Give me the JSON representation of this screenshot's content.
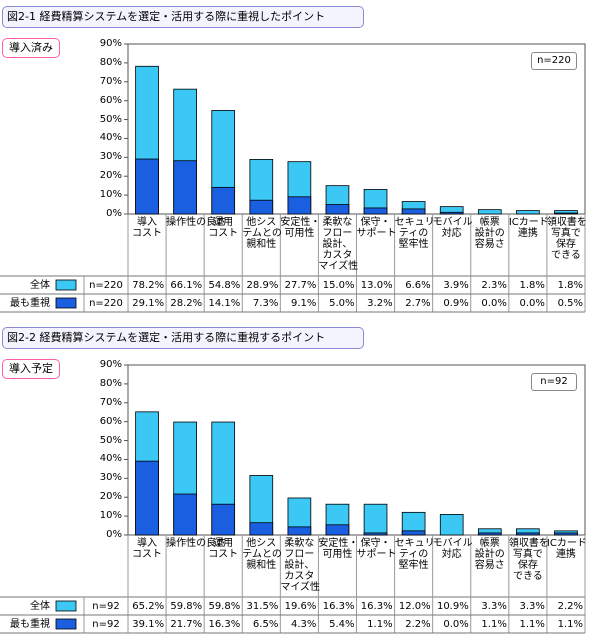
{
  "chart_data": [
    {
      "type": "bar",
      "title": "図2-1 経費精算システムを選定・活用する際に重視したポイント",
      "group_label": "導入済み",
      "sample_label": "n=220",
      "categories": [
        "導入\nコスト",
        "操作性の良さ",
        "運用\nコスト",
        "他シス\nテムとの\n親和性",
        "安定性・\n可用性",
        "柔軟な\nフロー\n設計、\nカスタ\nマイズ性",
        "保守・\nサポート",
        "セキュリ\nティの\n堅牢性",
        "モバイル\n対応",
        "帳票\n設計の\n容易さ",
        "ICカード\n連携",
        "領収書を\n写真で\n保存\nできる"
      ],
      "series": [
        {
          "name": "全体",
          "color": "#3cc8f5",
          "values": [
            78.2,
            66.1,
            54.8,
            28.9,
            27.7,
            15.0,
            13.0,
            6.6,
            3.9,
            2.3,
            1.8,
            1.8
          ],
          "value_labels": [
            "78.2%",
            "66.1%",
            "54.8%",
            "28.9%",
            "27.7%",
            "15.0%",
            "13.0%",
            "6.6%",
            "3.9%",
            "2.3%",
            "1.8%",
            "1.8%"
          ]
        },
        {
          "name": "最も重視",
          "color": "#1a5fe0",
          "values": [
            29.1,
            28.2,
            14.1,
            7.3,
            9.1,
            5.0,
            3.2,
            2.7,
            0.9,
            0.0,
            0.0,
            0.5
          ],
          "value_labels": [
            "29.1%",
            "28.2%",
            "14.1%",
            "7.3%",
            "9.1%",
            "5.0%",
            "3.2%",
            "2.7%",
            "0.9%",
            "0.0%",
            "0.0%",
            "0.5%"
          ]
        }
      ],
      "ylim": [
        0,
        90
      ],
      "yticks": [
        {
          "value": 0,
          "label": "0%"
        },
        {
          "value": 10,
          "label": "10%"
        },
        {
          "value": 20,
          "label": "20%"
        },
        {
          "value": 30,
          "label": "30%"
        },
        {
          "value": 40,
          "label": "40%"
        },
        {
          "value": 50,
          "label": "50%"
        },
        {
          "value": 60,
          "label": "60%"
        },
        {
          "value": 70,
          "label": "70%"
        },
        {
          "value": 80,
          "label": "80%"
        },
        {
          "value": 90,
          "label": "90%"
        }
      ],
      "grid": false
    },
    {
      "type": "bar",
      "title": "図2-2 経費精算システムを選定・活用する際に重視するポイント",
      "group_label": "導入予定",
      "sample_label": "n=92",
      "categories": [
        "導入\nコスト",
        "操作性の良さ",
        "運用\nコスト",
        "他シス\nテムとの\n親和性",
        "柔軟な\nフロー\n設計、\nカスタ\nマイズ性",
        "安定性・\n可用性",
        "保守・\nサポート",
        "セキュリ\nティの\n堅牢性",
        "モバイル\n対応",
        "帳票\n設計の\n容易さ",
        "領収書を\n写真で\n保存\nできる",
        "ICカード\n連携"
      ],
      "series": [
        {
          "name": "全体",
          "color": "#3cc8f5",
          "values": [
            65.2,
            59.8,
            59.8,
            31.5,
            19.6,
            16.3,
            16.3,
            12.0,
            10.9,
            3.3,
            3.3,
            2.2
          ],
          "value_labels": [
            "65.2%",
            "59.8%",
            "59.8%",
            "31.5%",
            "19.6%",
            "16.3%",
            "16.3%",
            "12.0%",
            "10.9%",
            "3.3%",
            "3.3%",
            "2.2%"
          ]
        },
        {
          "name": "最も重視",
          "color": "#1a5fe0",
          "values": [
            39.1,
            21.7,
            16.3,
            6.5,
            4.3,
            5.4,
            1.1,
            2.2,
            0.0,
            1.1,
            1.1,
            1.1
          ],
          "value_labels": [
            "39.1%",
            "21.7%",
            "16.3%",
            "6.5%",
            "4.3%",
            "5.4%",
            "1.1%",
            "2.2%",
            "0.0%",
            "1.1%",
            "1.1%",
            "1.1%"
          ]
        }
      ],
      "ylim": [
        0,
        90
      ],
      "yticks": [
        {
          "value": 0,
          "label": "0%"
        },
        {
          "value": 10,
          "label": "10%"
        },
        {
          "value": 20,
          "label": "20%"
        },
        {
          "value": 30,
          "label": "30%"
        },
        {
          "value": 40,
          "label": "40%"
        },
        {
          "value": 50,
          "label": "50%"
        },
        {
          "value": 60,
          "label": "60%"
        },
        {
          "value": 70,
          "label": "70%"
        },
        {
          "value": 80,
          "label": "80%"
        },
        {
          "value": 90,
          "label": "90%"
        }
      ],
      "grid": false
    }
  ]
}
